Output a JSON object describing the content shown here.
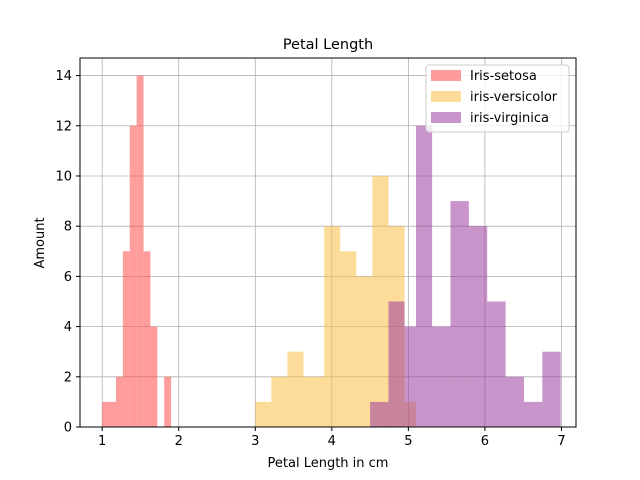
{
  "chart_data": {
    "type": "bar",
    "title": "Petal Length",
    "xlabel": "Petal Length in cm",
    "ylabel": "Amount",
    "xlim": [
      0.71,
      7.19
    ],
    "ylim": [
      0,
      14.7
    ],
    "xticks": [
      "1",
      "2",
      "3",
      "4",
      "5",
      "6",
      "7"
    ],
    "yticks": [
      "0",
      "2",
      "4",
      "6",
      "8",
      "10",
      "12",
      "14"
    ],
    "grid": true,
    "legend_position": "upper right",
    "series": [
      {
        "name": "Iris-setosa",
        "color": "#ff4d4d",
        "opacity": 0.55,
        "bins": [
          [
            1.0,
            1.18,
            1
          ],
          [
            1.18,
            1.27,
            2
          ],
          [
            1.27,
            1.36,
            7
          ],
          [
            1.36,
            1.45,
            12
          ],
          [
            1.45,
            1.54,
            14
          ],
          [
            1.54,
            1.63,
            7
          ],
          [
            1.63,
            1.72,
            4
          ],
          [
            1.81,
            1.9,
            2
          ]
        ]
      },
      {
        "name": "iris-versicolor",
        "color": "#fbbd45",
        "opacity": 0.55,
        "bins": [
          [
            3.0,
            3.21,
            1
          ],
          [
            3.21,
            3.42,
            2
          ],
          [
            3.42,
            3.63,
            3
          ],
          [
            3.63,
            3.9,
            2
          ],
          [
            3.9,
            4.11,
            8
          ],
          [
            4.11,
            4.32,
            7
          ],
          [
            4.32,
            4.53,
            6
          ],
          [
            4.53,
            4.74,
            10
          ],
          [
            4.74,
            4.95,
            8
          ],
          [
            4.95,
            5.1,
            1
          ]
        ]
      },
      {
        "name": "iris-virginica",
        "color": "#9b3d9c",
        "opacity": 0.55,
        "bins": [
          [
            4.5,
            4.74,
            1
          ],
          [
            4.74,
            4.95,
            5
          ],
          [
            4.95,
            5.1,
            4
          ],
          [
            5.1,
            5.31,
            12
          ],
          [
            5.31,
            5.55,
            4
          ],
          [
            5.55,
            5.79,
            9
          ],
          [
            5.79,
            6.03,
            8
          ],
          [
            6.03,
            6.27,
            5
          ],
          [
            6.27,
            6.51,
            2
          ],
          [
            6.51,
            6.75,
            1
          ],
          [
            6.75,
            6.99,
            3
          ]
        ]
      }
    ]
  }
}
